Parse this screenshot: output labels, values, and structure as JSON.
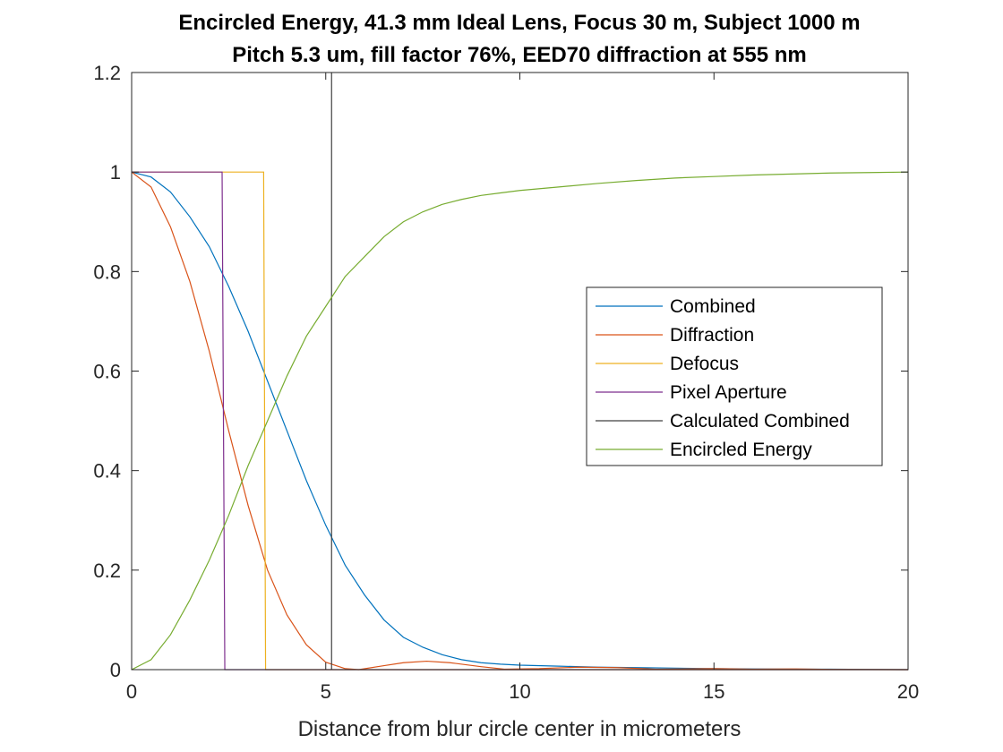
{
  "chart_data": {
    "type": "line",
    "title": "Encircled Energy, 41.3 mm Ideal Lens, Focus 30 m, Subject 1000 m",
    "subtitle": "Pitch 5.3 um, fill factor 76%, EED70 diffraction at 555 nm",
    "xlabel": "Distance from blur circle center in micrometers",
    "ylabel": "",
    "xlim": [
      0,
      20
    ],
    "ylim": [
      0,
      1.2
    ],
    "xticks": [
      "0",
      "5",
      "10",
      "15",
      "20"
    ],
    "yticks": [
      "0",
      "0.2",
      "0.4",
      "0.6",
      "0.8",
      "1",
      "1.2"
    ],
    "grid": false,
    "legend_position": "right",
    "series": [
      {
        "name": "Combined",
        "color": "#0072BD",
        "x": [
          0,
          0.5,
          1,
          1.5,
          2,
          2.5,
          3,
          3.5,
          4,
          4.5,
          5,
          5.5,
          6,
          6.5,
          7,
          7.5,
          8,
          8.5,
          9,
          9.5,
          10,
          11,
          12,
          13,
          14,
          15,
          16,
          17,
          18,
          19,
          20
        ],
        "y": [
          1,
          0.99,
          0.96,
          0.91,
          0.85,
          0.77,
          0.68,
          0.58,
          0.48,
          0.38,
          0.29,
          0.21,
          0.15,
          0.1,
          0.065,
          0.045,
          0.03,
          0.02,
          0.014,
          0.011,
          0.009,
          0.007,
          0.005,
          0.004,
          0.003,
          0.002,
          0.0015,
          0.001,
          0.001,
          0.0005,
          0
        ]
      },
      {
        "name": "Diffraction",
        "color": "#D95319",
        "x": [
          0,
          0.5,
          1,
          1.5,
          2,
          2.5,
          3,
          3.5,
          4,
          4.5,
          5,
          5.5,
          5.85,
          6.5,
          7,
          7.6,
          8.2,
          9,
          9.6,
          10.5,
          11.5,
          12.5,
          13.5,
          15,
          16,
          17,
          18,
          20
        ],
        "y": [
          1,
          0.97,
          0.89,
          0.78,
          0.64,
          0.48,
          0.33,
          0.2,
          0.11,
          0.05,
          0.015,
          0.002,
          0,
          0.008,
          0.014,
          0.017,
          0.014,
          0.006,
          0.001,
          0.002,
          0.005,
          0.004,
          0.001,
          0.002,
          0.001,
          0.0015,
          0.0005,
          0
        ]
      },
      {
        "name": "Defocus",
        "color": "#EDB120",
        "x": [
          0,
          3.4,
          3.45,
          20
        ],
        "y": [
          1,
          1,
          0,
          0
        ]
      },
      {
        "name": "Pixel Aperture",
        "color": "#7E2F8E",
        "x": [
          0,
          2.33,
          2.4,
          20
        ],
        "y": [
          1,
          1,
          0,
          0
        ]
      },
      {
        "name": "Calculated Combined",
        "color": "#404040",
        "x": [
          5.15,
          5.15
        ],
        "y": [
          0,
          1.2
        ]
      },
      {
        "name": "Encircled Energy",
        "color": "#77AC30",
        "x": [
          0,
          0.5,
          1,
          1.5,
          2,
          2.5,
          3,
          3.5,
          4,
          4.5,
          5,
          5.5,
          6,
          6.5,
          7,
          7.5,
          8,
          8.5,
          9,
          9.5,
          10,
          11,
          12,
          13,
          14,
          15,
          16,
          17,
          18,
          19,
          20
        ],
        "y": [
          0,
          0.02,
          0.07,
          0.14,
          0.22,
          0.31,
          0.41,
          0.5,
          0.59,
          0.67,
          0.73,
          0.79,
          0.83,
          0.87,
          0.9,
          0.92,
          0.935,
          0.945,
          0.953,
          0.958,
          0.963,
          0.97,
          0.977,
          0.983,
          0.988,
          0.991,
          0.994,
          0.996,
          0.998,
          0.999,
          1
        ]
      }
    ]
  }
}
